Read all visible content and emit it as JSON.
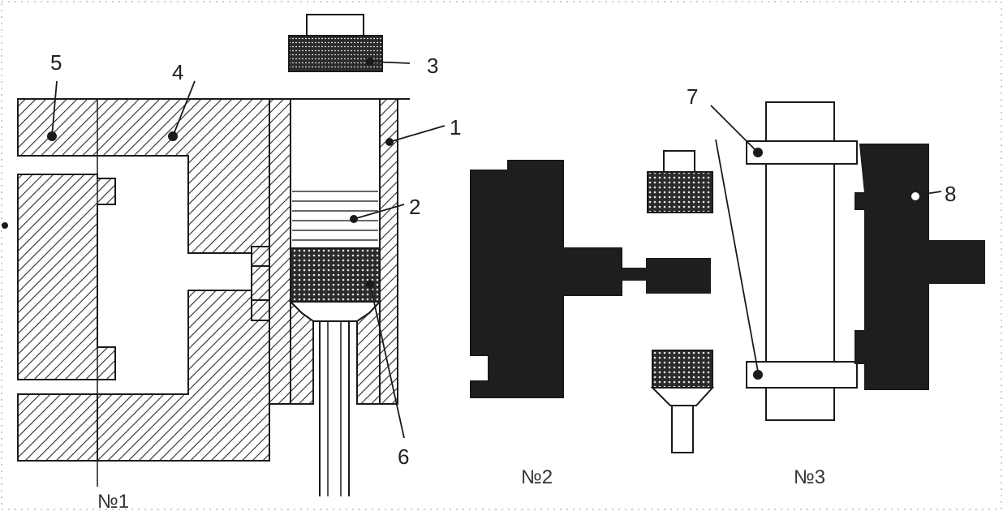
{
  "labels": {
    "l1": "1",
    "l2": "2",
    "l3": "3",
    "l4": "4",
    "l5": "5",
    "l6": "6",
    "l7": "7",
    "l8": "8"
  },
  "captions": {
    "fig1": "№1",
    "fig2": "№2",
    "fig3": "№3"
  },
  "colors": {
    "ink": "#1a1a1a",
    "dark_fill": "#202020",
    "hatch_fill": "#b8b8b8",
    "paper": "#ffffff"
  }
}
